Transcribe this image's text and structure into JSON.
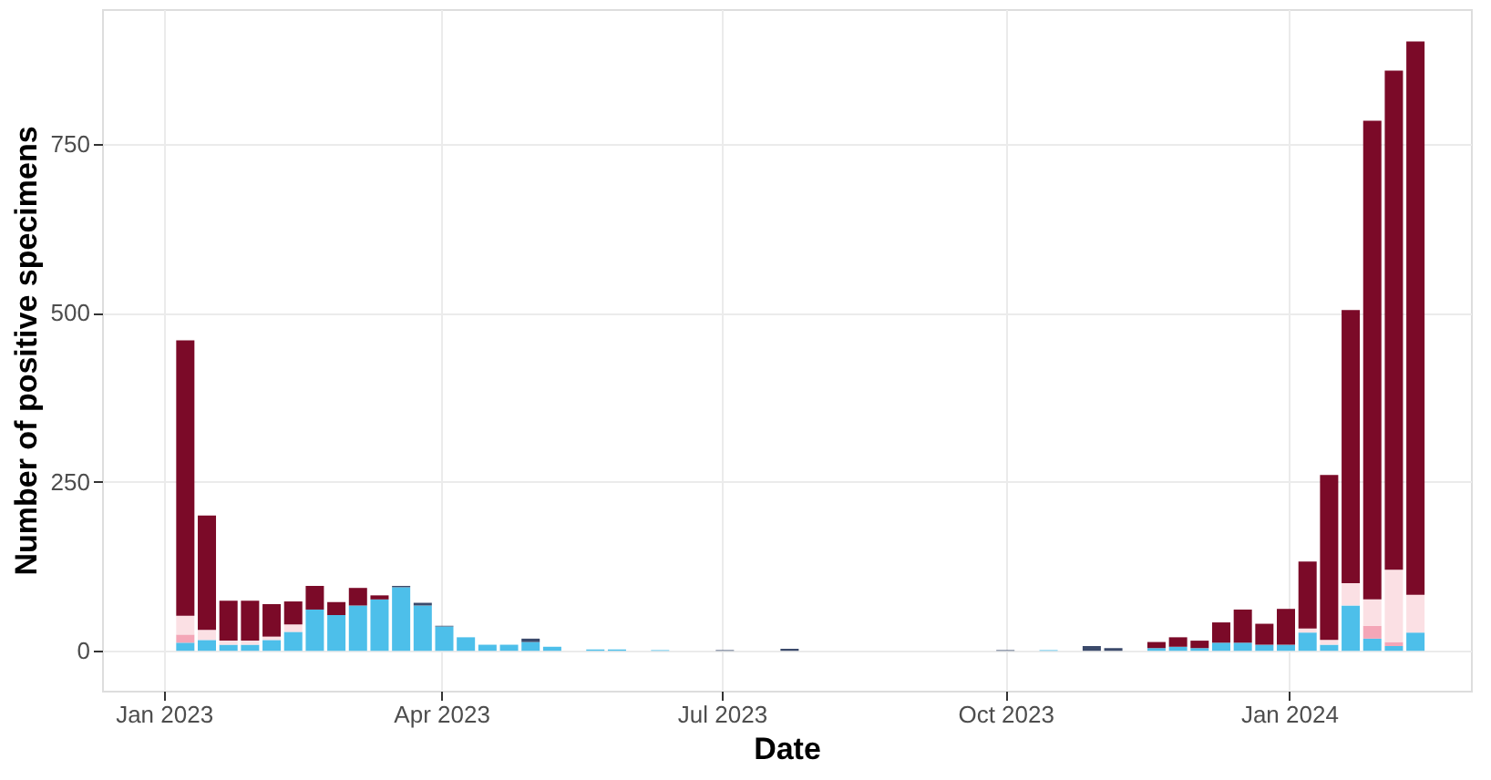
{
  "chart_data": {
    "type": "bar",
    "stacked": true,
    "xlabel": "Date",
    "ylabel": "Number of positive specimens",
    "x": [
      "2023-01-08",
      "2023-01-15",
      "2023-01-22",
      "2023-01-29",
      "2023-02-05",
      "2023-02-12",
      "2023-02-19",
      "2023-02-26",
      "2023-03-05",
      "2023-03-12",
      "2023-03-19",
      "2023-03-26",
      "2023-04-02",
      "2023-04-09",
      "2023-04-16",
      "2023-04-23",
      "2023-04-30",
      "2023-05-07",
      "2023-05-21",
      "2023-05-28",
      "2023-06-11",
      "2023-07-02",
      "2023-07-23",
      "2023-10-01",
      "2023-10-15",
      "2023-10-29",
      "2023-11-05",
      "2023-11-19",
      "2023-11-26",
      "2023-12-03",
      "2023-12-10",
      "2023-12-17",
      "2023-12-24",
      "2023-12-31",
      "2024-01-07",
      "2024-01-14",
      "2024-01-21",
      "2024-01-28",
      "2024-02-04",
      "2024-02-11"
    ],
    "series": [
      {
        "color": "#4dbfea",
        "values": [
          12,
          16,
          9,
          9,
          16,
          28,
          61,
          53,
          67,
          76,
          94,
          67,
          36,
          20,
          9,
          9,
          13,
          6,
          2,
          2,
          1,
          null,
          null,
          null,
          1,
          null,
          null,
          4,
          6,
          4,
          12,
          12,
          9,
          9,
          27,
          9,
          67,
          18,
          7,
          27
        ]
      },
      {
        "color": "#f4a6b7",
        "values": [
          12,
          null,
          null,
          null,
          null,
          null,
          null,
          null,
          null,
          null,
          null,
          null,
          null,
          null,
          null,
          null,
          null,
          null,
          null,
          null,
          null,
          null,
          null,
          null,
          null,
          null,
          null,
          null,
          null,
          null,
          null,
          null,
          null,
          null,
          null,
          null,
          null,
          19,
          6,
          null
        ]
      },
      {
        "color": "#fbe0e4",
        "values": [
          28,
          15,
          6,
          6,
          5,
          11,
          null,
          null,
          null,
          null,
          null,
          null,
          null,
          null,
          null,
          null,
          null,
          null,
          null,
          null,
          null,
          null,
          null,
          null,
          null,
          null,
          null,
          null,
          null,
          null,
          null,
          null,
          null,
          null,
          6,
          7,
          33,
          39,
          107,
          56
        ]
      },
      {
        "color": "#7b0a28",
        "values": [
          407,
          169,
          59,
          59,
          48,
          34,
          35,
          19,
          26,
          6,
          null,
          null,
          null,
          null,
          null,
          null,
          null,
          null,
          null,
          null,
          null,
          null,
          null,
          null,
          null,
          null,
          null,
          9,
          14,
          11,
          30,
          49,
          31,
          53,
          99,
          244,
          404,
          708,
          738,
          818
        ]
      },
      {
        "color": "#3b4a6b",
        "values": [
          null,
          null,
          null,
          null,
          null,
          null,
          null,
          null,
          null,
          null,
          2,
          4,
          1,
          null,
          null,
          null,
          5,
          null,
          null,
          null,
          null,
          1,
          3,
          1,
          null,
          7,
          4,
          null,
          null,
          null,
          null,
          null,
          null,
          null,
          null,
          null,
          null,
          null,
          null,
          null
        ]
      }
    ],
    "xlim": [
      "2022-12-12",
      "2024-02-29"
    ],
    "xticks": [
      {
        "value": "2023-01-01",
        "label": "Jan 2023"
      },
      {
        "value": "2023-04-01",
        "label": "Apr 2023"
      },
      {
        "value": "2023-07-01",
        "label": "Jul 2023"
      },
      {
        "value": "2023-10-01",
        "label": "Oct 2023"
      },
      {
        "value": "2024-01-01",
        "label": "Jan 2024"
      }
    ],
    "ylim": [
      -59,
      949
    ],
    "yticks": [
      0,
      250,
      500,
      750
    ],
    "grid": true,
    "legend": false
  }
}
